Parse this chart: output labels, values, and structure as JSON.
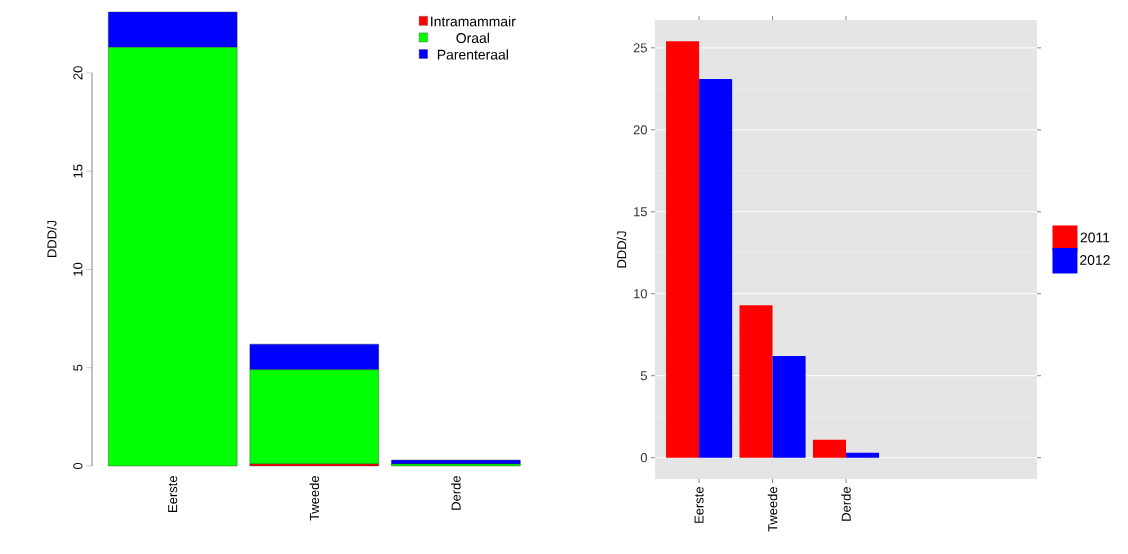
{
  "chart_data": [
    {
      "type": "bar",
      "stacked": true,
      "ylabel": "DDD/J",
      "categories": [
        "Eerste",
        "Tweede",
        "Derde"
      ],
      "ylim": [
        0,
        23.1
      ],
      "yticks": [
        0,
        5,
        10,
        15,
        20
      ],
      "legend": "top right",
      "series": [
        {
          "name": "Intramammair",
          "color": "#ff0000",
          "values": [
            0,
            0.1,
            0
          ]
        },
        {
          "name": "Oraal",
          "color": "#00ff00",
          "values": [
            21.3,
            4.8,
            0.1
          ]
        },
        {
          "name": "Parenteraal",
          "color": "#0000ff",
          "values": [
            1.8,
            1.3,
            0.2
          ]
        }
      ]
    },
    {
      "type": "bar",
      "ylabel": "DDD/J",
      "categories": [
        "Eerste",
        "Tweede",
        "Derde",
        null,
        null
      ],
      "ylim": [
        -1.3,
        26.7
      ],
      "yticks": [
        0,
        5,
        10,
        15,
        20,
        25
      ],
      "grid": "y",
      "legend": "right",
      "series": [
        {
          "name": "2011",
          "color": "#ff0000",
          "values": [
            25.4,
            9.3,
            1.1,
            null,
            null
          ]
        },
        {
          "name": "2012",
          "color": "#0000ff",
          "values": [
            23.1,
            6.2,
            0.3,
            null,
            null
          ]
        }
      ]
    }
  ]
}
